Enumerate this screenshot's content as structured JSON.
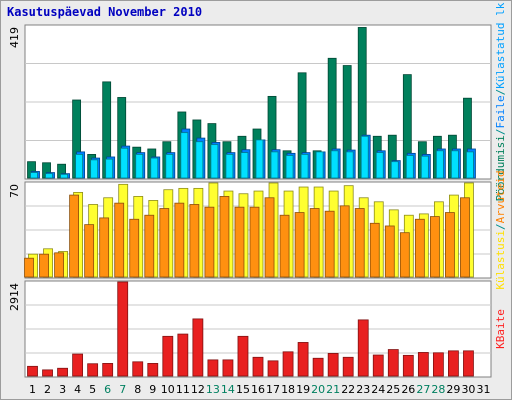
{
  "header": {
    "title": "Kasutuspäevad November 2010"
  },
  "chart_data": [
    {
      "type": "bar",
      "panel": "top",
      "ymax_label": "419",
      "ylim": [
        0,
        419
      ],
      "legend": [
        {
          "text": "Pöördumisi",
          "color": "#00805c"
        },
        {
          "text": "/",
          "color": "#008f8f"
        },
        {
          "text": "Faile",
          "color": "#0080ff"
        },
        {
          "text": "/",
          "color": "#008f8f"
        },
        {
          "text": "Külastatud lk",
          "color": "#00a0ff"
        }
      ],
      "x": [
        1,
        2,
        3,
        4,
        5,
        6,
        7,
        8,
        9,
        10,
        11,
        12,
        13,
        14,
        15,
        16,
        17,
        18,
        19,
        20,
        21,
        22,
        23,
        24,
        25,
        26,
        27,
        28,
        29,
        30
      ],
      "series": [
        {
          "name": "Pöördumisi",
          "color": "#00805c",
          "values": [
            45,
            42,
            38,
            215,
            65,
            265,
            222,
            85,
            80,
            100,
            182,
            160,
            150,
            100,
            115,
            135,
            225,
            75,
            290,
            75,
            330,
            310,
            415,
            115,
            118,
            285,
            100,
            115,
            118,
            220
          ]
        },
        {
          "name": "Faile",
          "color": "#0080ff",
          "values": [
            18,
            15,
            12,
            72,
            55,
            58,
            88,
            70,
            58,
            70,
            135,
            110,
            98,
            70,
            78,
            105,
            78,
            68,
            70,
            72,
            80,
            77,
            118,
            75,
            48,
            68,
            65,
            80,
            80,
            80
          ]
        },
        {
          "name": "Külastatud lk",
          "color": "#00e0ff",
          "values": [
            15,
            12,
            10,
            65,
            50,
            52,
            82,
            65,
            55,
            65,
            125,
            100,
            92,
            65,
            70,
            105,
            72,
            62,
            65,
            72,
            75,
            72,
            115,
            70,
            45,
            62,
            60,
            75,
            75,
            72
          ]
        }
      ]
    },
    {
      "type": "bar",
      "panel": "middle",
      "ymax_label": "70",
      "ylim": [
        0,
        70
      ],
      "legend": [
        {
          "text": "Külastusi",
          "color": "#ffe000"
        },
        {
          "text": "/",
          "color": "#008f8f"
        },
        {
          "text": "Arvuteid",
          "color": "#ff8000"
        }
      ],
      "x": [
        1,
        2,
        3,
        4,
        5,
        6,
        7,
        8,
        9,
        10,
        11,
        12,
        13,
        14,
        15,
        16,
        17,
        18,
        19,
        20,
        21,
        22,
        23,
        24,
        25,
        26,
        27,
        28,
        29,
        30
      ],
      "series": [
        {
          "name": "Külastusi",
          "color": "#ffff30",
          "values": [
            17,
            21,
            19,
            63,
            54,
            59,
            69,
            60,
            57,
            65,
            66,
            66,
            70,
            64,
            62,
            64,
            70,
            64,
            67,
            67,
            64,
            68,
            59,
            56,
            50,
            46,
            47,
            56,
            61,
            70
          ]
        },
        {
          "name": "Arvuteid",
          "color": "#ff9010",
          "values": [
            14,
            17,
            18,
            61,
            39,
            44,
            55,
            43,
            46,
            51,
            55,
            54,
            52,
            60,
            52,
            52,
            59,
            46,
            48,
            51,
            49,
            53,
            51,
            40,
            38,
            33,
            43,
            45,
            48,
            59
          ]
        }
      ]
    },
    {
      "type": "bar",
      "panel": "bottom",
      "ymax_label": "2914",
      "ylim": [
        0,
        2914
      ],
      "legend": [
        {
          "text": "KBaite",
          "color": "#ff2020"
        }
      ],
      "x": [
        1,
        2,
        3,
        4,
        5,
        6,
        7,
        8,
        9,
        10,
        11,
        12,
        13,
        14,
        15,
        16,
        17,
        18,
        19,
        20,
        21,
        22,
        23,
        24,
        25,
        26,
        27,
        28,
        29,
        30
      ],
      "series": [
        {
          "name": "KBaite",
          "color": "#e82020",
          "values": [
            300,
            190,
            240,
            680,
            380,
            390,
            2914,
            440,
            390,
            1230,
            1300,
            1770,
            500,
            500,
            1230,
            580,
            470,
            750,
            1040,
            550,
            700,
            580,
            1740,
            650,
            820,
            640,
            730,
            720,
            780,
            780
          ]
        }
      ]
    }
  ],
  "x_axis": {
    "labels": [
      "1",
      "2",
      "3",
      "4",
      "5",
      "6",
      "7",
      "8",
      "9",
      "10",
      "11",
      "12",
      "13",
      "14",
      "15",
      "16",
      "17",
      "18",
      "19",
      "20",
      "21",
      "22",
      "23",
      "24",
      "25",
      "26",
      "27",
      "28",
      "29",
      "30",
      "31"
    ],
    "weekend_color": "#008060",
    "weekday_color": "#000000",
    "weekend_days": [
      6,
      7,
      13,
      14,
      20,
      21,
      27,
      28
    ]
  },
  "colors": {
    "bar_bg": "#ffffff",
    "frame_bg": "#ececec",
    "title": "#0000c0"
  }
}
